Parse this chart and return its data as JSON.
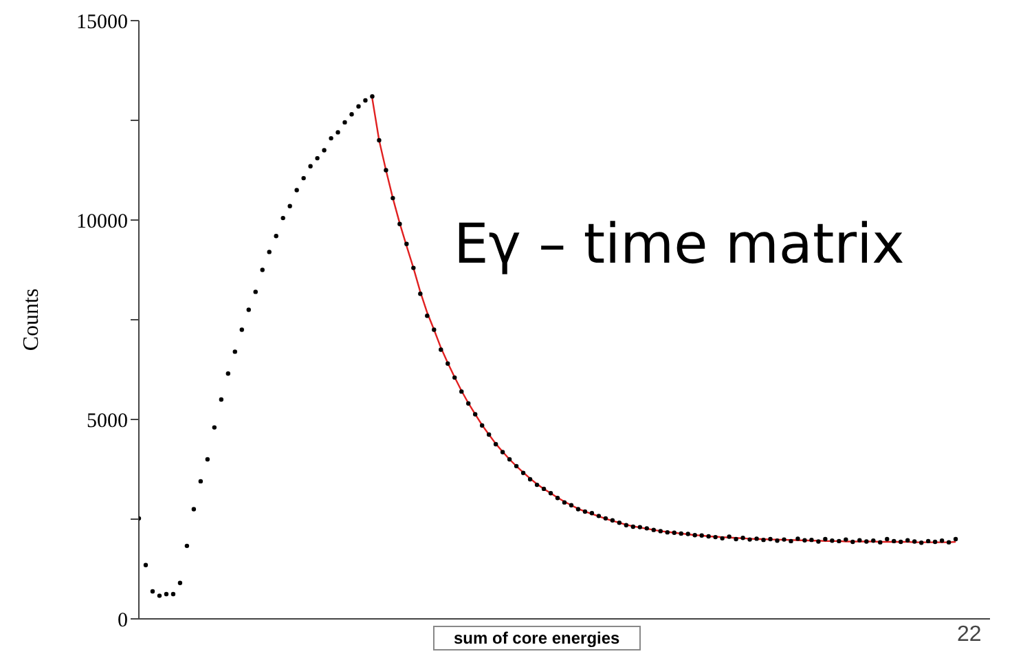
{
  "chart_data": {
    "type": "scatter",
    "xlabel": "sum of core energies",
    "ylabel": "Counts",
    "annotations": [
      "Eγ – time matrix",
      "22"
    ],
    "categories": [
      null,
      null,
      null,
      null,
      null,
      null,
      null,
      null,
      null,
      null,
      null,
      null,
      null,
      null,
      null,
      null,
      null,
      null,
      null,
      null,
      null,
      null,
      null,
      null,
      null,
      null,
      null,
      null,
      null,
      null,
      null,
      null,
      null,
      null,
      null,
      null,
      null,
      null,
      null,
      null,
      null,
      null,
      null,
      null,
      null,
      null,
      null,
      null,
      null,
      null,
      null,
      null,
      null,
      null,
      null,
      null,
      null,
      null,
      null,
      null,
      null,
      null,
      null,
      null,
      null,
      null,
      null,
      null,
      null,
      null,
      null,
      null,
      null,
      null,
      null,
      null,
      null,
      null,
      null,
      null,
      null,
      null,
      null,
      null,
      null,
      null,
      null,
      null,
      null,
      null,
      null,
      null,
      null,
      null,
      null,
      null,
      null,
      null,
      null,
      null,
      null,
      null,
      null,
      null,
      null,
      null,
      null,
      null,
      null,
      null,
      null,
      null,
      null,
      null,
      null,
      null,
      null,
      null,
      null,
      null,
      null,
      null,
      null,
      null,
      null
    ],
    "series": [
      {
        "color": "#000000",
        "values": [
          2520,
          1350,
          690,
          580,
          620,
          620,
          900,
          1830,
          2750,
          3450,
          4000,
          4800,
          5500,
          6150,
          6700,
          7250,
          7750,
          8200,
          8750,
          9200,
          9600,
          10050,
          10350,
          10750,
          11050,
          11350,
          11550,
          11750,
          12050,
          12200,
          12450,
          12650,
          12850,
          13000,
          13100,
          12000,
          11250,
          10550,
          9900,
          9400,
          8800,
          8150,
          7600,
          7250,
          6750,
          6400,
          6050,
          5700,
          5400,
          5130,
          4850,
          4620,
          4380,
          4180,
          4000,
          3830,
          3660,
          3500,
          3360,
          3260,
          3150,
          3030,
          2920,
          2850,
          2750,
          2690,
          2650,
          2580,
          2520,
          2470,
          2410,
          2350,
          2310,
          2300,
          2270,
          2230,
          2200,
          2170,
          2160,
          2140,
          2130,
          2100,
          2090,
          2070,
          2050,
          2020,
          2060,
          2000,
          2030,
          1990,
          2010,
          1980,
          2000,
          1960,
          1990,
          1950,
          2010,
          1970,
          1980,
          1940,
          2000,
          1960,
          1950,
          1990,
          1930,
          1970,
          1940,
          1960,
          1920,
          2000,
          1950,
          1930,
          1970,
          1940,
          1910,
          1950,
          1930,
          1960,
          1920,
          2000,
          null,
          null,
          null,
          null,
          null
        ]
      },
      {
        "type": "line",
        "color": "#e02020",
        "values": [
          null,
          null,
          null,
          null,
          null,
          null,
          null,
          null,
          null,
          null,
          null,
          null,
          null,
          null,
          null,
          null,
          null,
          null,
          null,
          null,
          null,
          null,
          null,
          null,
          null,
          null,
          null,
          null,
          null,
          null,
          null,
          null,
          null,
          null,
          13050,
          12000,
          11250,
          10550,
          9920,
          9350,
          8800,
          8200,
          7680,
          7250,
          6800,
          6420,
          6060,
          5720,
          5410,
          5130,
          4860,
          4620,
          4390,
          4190,
          4000,
          3830,
          3670,
          3520,
          3380,
          3260,
          3150,
          3040,
          2940,
          2850,
          2760,
          2690,
          2630,
          2570,
          2510,
          2460,
          2410,
          2360,
          2320,
          2290,
          2260,
          2230,
          2200,
          2180,
          2160,
          2140,
          2120,
          2100,
          2090,
          2070,
          2060,
          2050,
          2040,
          2030,
          2020,
          2010,
          2000,
          2000,
          1990,
          1990,
          1980,
          1980,
          1970,
          1970,
          1960,
          1960,
          1950,
          1950,
          1950,
          1940,
          1940,
          1940,
          1940,
          1940,
          1930,
          1930,
          1930,
          1930,
          1930,
          1920,
          1920,
          1920,
          1920,
          1920,
          1920,
          1930,
          null,
          null,
          null,
          null,
          null
        ]
      }
    ],
    "ylim": [
      0,
      15000
    ],
    "yticks": [
      0,
      {
        "value": 2500,
        "label": null
      },
      5000,
      {
        "value": 7500,
        "label": null
      },
      10000,
      {
        "value": 12500,
        "label": null
      },
      15000
    ]
  }
}
